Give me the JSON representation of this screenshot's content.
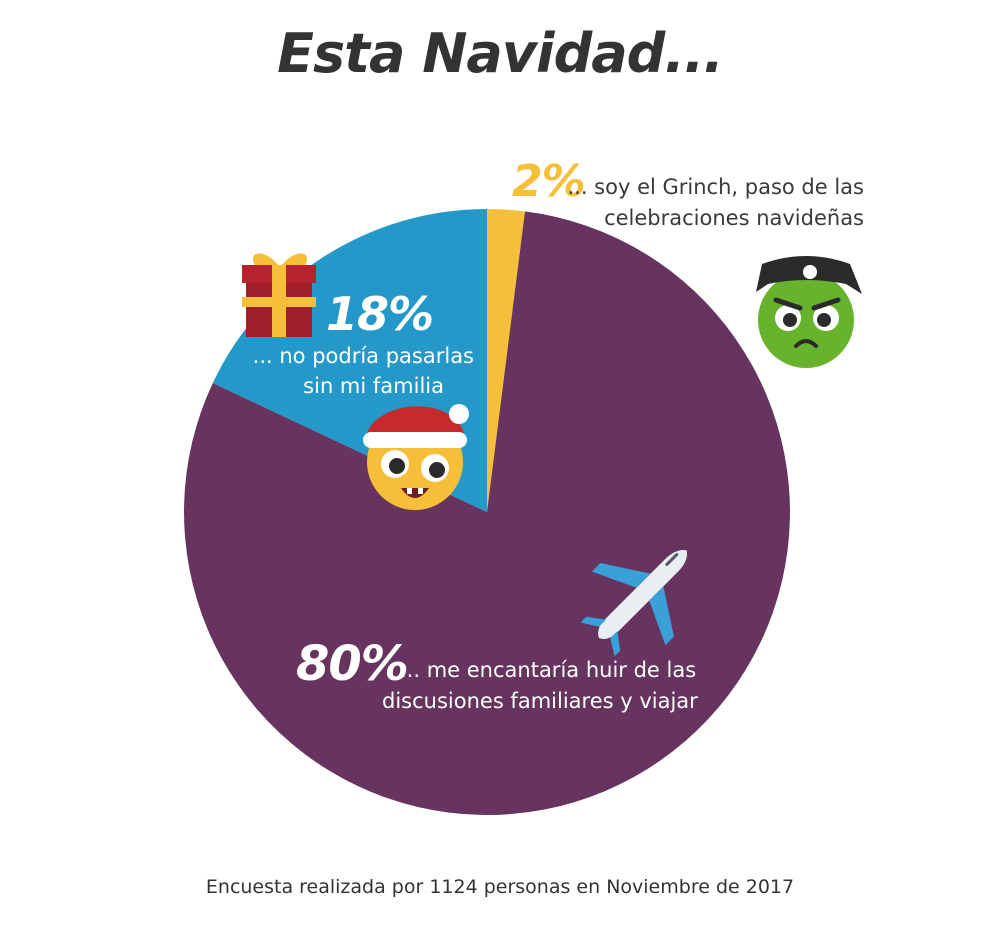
{
  "chart_data": {
    "type": "pie",
    "title": "Esta Navidad...",
    "slices": [
      {
        "value": 2,
        "label": "2%",
        "description_lines": [
          "... soy el Grinch, paso de las",
          "celebraciones navideñas"
        ],
        "color": "#f6bf3a"
      },
      {
        "value": 80,
        "label": "80%",
        "description_lines": [
          "... me encantaría huir de las",
          "discusiones familiares y viajar"
        ],
        "color": "#66345f"
      },
      {
        "value": 18,
        "label": "18%",
        "description_lines": [
          "... no podría pasarlas",
          "sin mi familia"
        ],
        "color": "#2499c9"
      }
    ],
    "footnote": "Encuesta realizada por 1124 personas en Noviembre de 2017"
  },
  "icons": [
    "gift-icon",
    "santa-smiley-icon",
    "pirate-grinch-icon",
    "airplane-icon"
  ],
  "colors": {
    "title": "#333333",
    "text_dark": "#3a3a3a",
    "text_light": "#ffffff",
    "grinch_pct": "#f6bf3a"
  }
}
